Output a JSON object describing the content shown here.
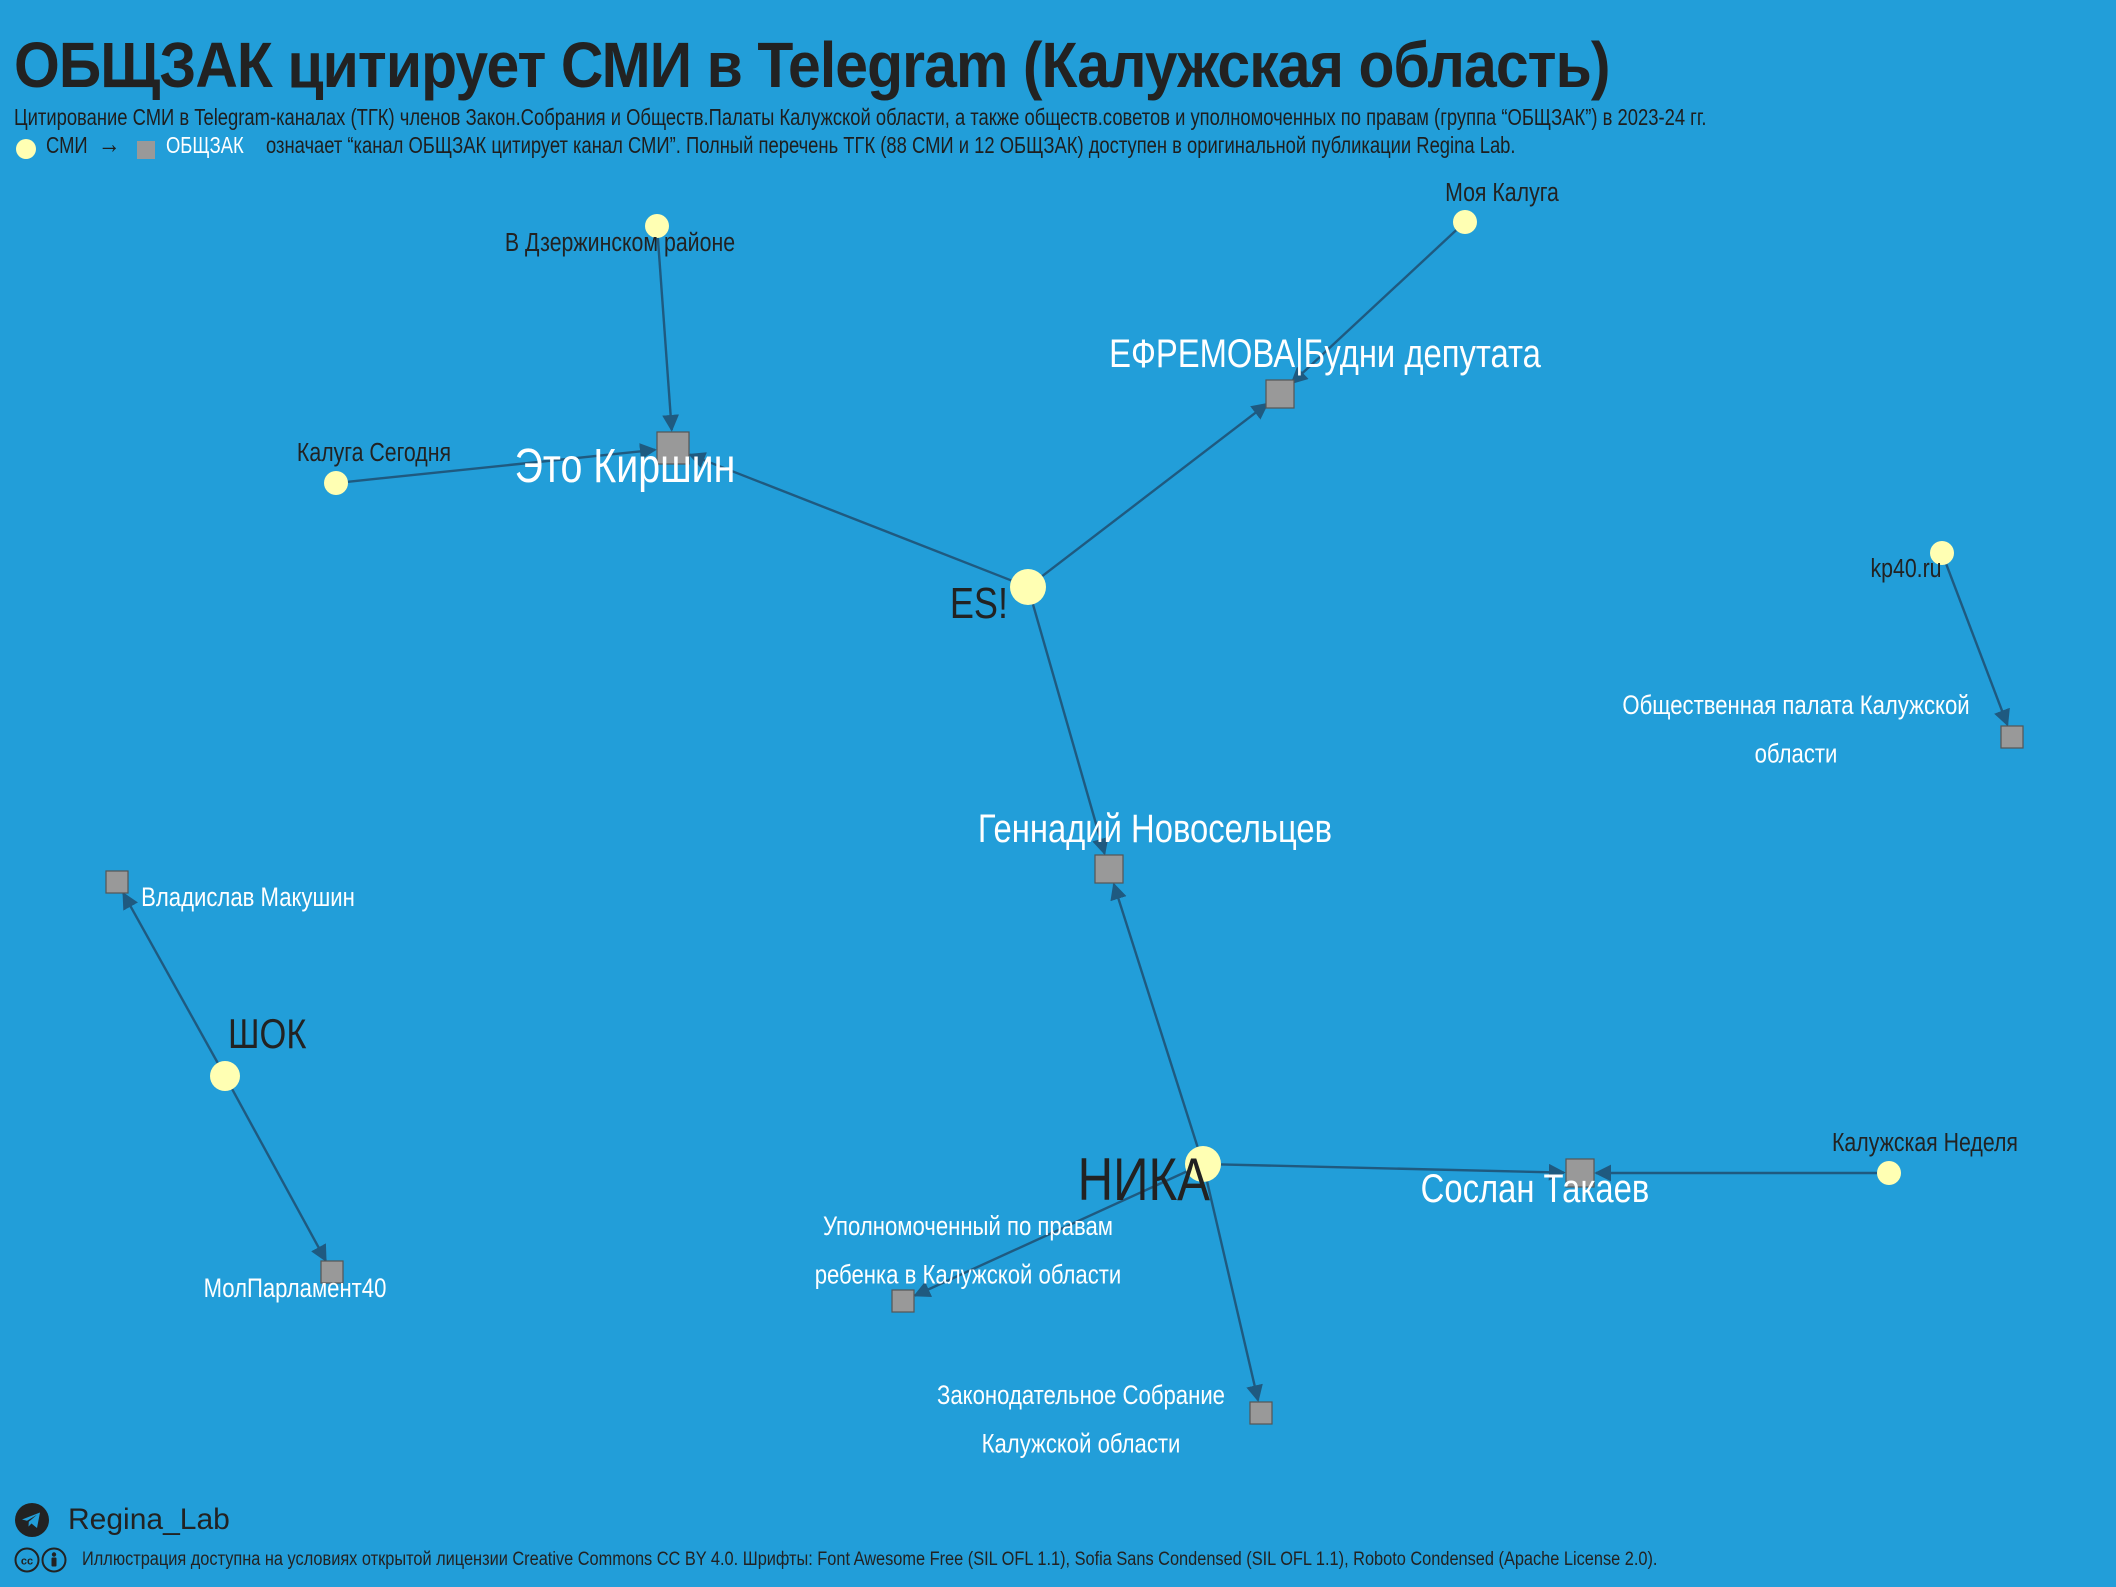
{
  "header": {
    "title": "ОБЩЗАК цитирует СМИ в Telegram (Калужская область)",
    "subtitle1": "Цитирование СМИ в Telegram-каналах (ТГК) членов Закон.Собрания и Обществ.Палаты Калужской области, а также обществ.советов и уполномоченных по правам (группа “ОБЩЗАК”) в 2023-24 гг.",
    "legend_media": "СМИ",
    "legend_arrow": "→",
    "legend_member": "ОБЩЗАК",
    "subtitle2": "означает “канал ОБЩЗАК цитирует канал СМИ”. Полный перечень ТГК (88 СМИ и 12 ОБЩЗАК) доступен в оригинальной публикации Regina Lab."
  },
  "colors": {
    "background": "#229ed9",
    "media_node": "#ffffb3",
    "member_node": "#999999",
    "edge": "#1f5a80"
  },
  "diagram": {
    "nodes": [
      {
        "id": "es",
        "label": "ES!",
        "type": "media",
        "size": "large"
      },
      {
        "id": "nika",
        "label": "НИКА",
        "type": "media",
        "size": "large"
      },
      {
        "id": "shok",
        "label": "ШОК",
        "type": "media",
        "size": "medium"
      },
      {
        "id": "dzer",
        "label": "В Дзержинском районе",
        "type": "media",
        "size": "small"
      },
      {
        "id": "kaluga_today",
        "label": "Калуга Сегодня",
        "type": "media",
        "size": "small"
      },
      {
        "id": "my_kaluga",
        "label": "Моя Калуга",
        "type": "media",
        "size": "small"
      },
      {
        "id": "kp40",
        "label": "kp40.ru",
        "type": "media",
        "size": "small"
      },
      {
        "id": "kal_week",
        "label": "Калужская Неделя",
        "type": "media",
        "size": "small"
      },
      {
        "id": "kirshin",
        "label": "Это Киршин",
        "type": "member"
      },
      {
        "id": "efremova",
        "label": "ЕФРЕМОВА|Будни депутата",
        "type": "member"
      },
      {
        "id": "novoseltsev",
        "label": "Геннадий Новосельцев",
        "type": "member"
      },
      {
        "id": "takaev",
        "label": "Сослан Такаев",
        "type": "member"
      },
      {
        "id": "obshch_palata",
        "label": "Общественная палата Калужской области",
        "type": "member"
      },
      {
        "id": "makushin",
        "label": "Владислав Макушин",
        "type": "member"
      },
      {
        "id": "molparl",
        "label": "МолПарламент40",
        "type": "member"
      },
      {
        "id": "ombudsman_child",
        "label": "Уполномоченный по правам ребенка в Калужской области",
        "type": "member"
      },
      {
        "id": "zaksobr",
        "label": "Законодательное Собрание Калужской области",
        "type": "member"
      }
    ],
    "edges": [
      {
        "from": "dzer",
        "to": "kirshin"
      },
      {
        "from": "kaluga_today",
        "to": "kirshin"
      },
      {
        "from": "es",
        "to": "kirshin"
      },
      {
        "from": "es",
        "to": "efremova"
      },
      {
        "from": "my_kaluga",
        "to": "efremova"
      },
      {
        "from": "es",
        "to": "novoseltsev"
      },
      {
        "from": "nika",
        "to": "novoseltsev"
      },
      {
        "from": "nika",
        "to": "takaev"
      },
      {
        "from": "kal_week",
        "to": "takaev"
      },
      {
        "from": "nika",
        "to": "ombudsman_child"
      },
      {
        "from": "nika",
        "to": "zaksobr"
      },
      {
        "from": "kp40",
        "to": "obshch_palata"
      },
      {
        "from": "shok",
        "to": "makushin"
      },
      {
        "from": "shok",
        "to": "molparl"
      }
    ]
  },
  "footer": {
    "brand": "Regina_Lab",
    "license": "Иллюстрация доступна на условиях открытой лицензии Creative Commons CC BY 4.0. Шрифты: Font Awesome Free (SIL OFL 1.1), Sofia Sans Condensed (SIL OFL 1.1), Roboto Condensed (Apache License 2.0)."
  },
  "icons": {
    "legend_media": "media-dot-icon",
    "legend_member": "member-square-icon",
    "brand": "telegram-icon",
    "license": "creative-commons-icon"
  }
}
